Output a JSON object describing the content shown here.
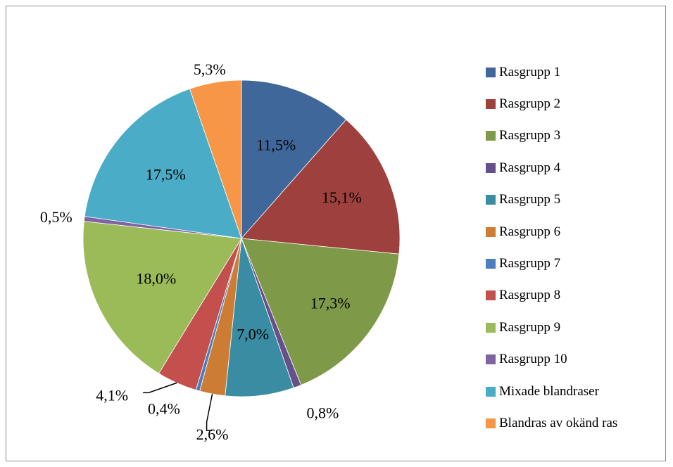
{
  "chart_data": {
    "type": "pie",
    "title": "",
    "slices": [
      {
        "name": "Rasgrupp 1",
        "label": "11,5%",
        "value": 11.5,
        "color": "#3f679a"
      },
      {
        "name": "Rasgrupp 2",
        "label": "15,1%",
        "value": 15.1,
        "color": "#9e403d"
      },
      {
        "name": "Rasgrupp 3",
        "label": "17,3%",
        "value": 17.3,
        "color": "#7e9a48"
      },
      {
        "name": "Rasgrupp 4",
        "label": "0,8%",
        "value": 0.8,
        "color": "#65508a"
      },
      {
        "name": "Rasgrupp 5",
        "label": "7,0%",
        "value": 7.0,
        "color": "#3a8ca3"
      },
      {
        "name": "Rasgrupp 6",
        "label": "2,6%",
        "value": 2.6,
        "color": "#cd7c34"
      },
      {
        "name": "Rasgrupp 7",
        "label": "0,4%",
        "value": 0.4,
        "color": "#4a7fc0"
      },
      {
        "name": "Rasgrupp 8",
        "label": "4,1%",
        "value": 4.1,
        "color": "#c4504d"
      },
      {
        "name": "Rasgrupp 9",
        "label": "18,0%",
        "value": 18.0,
        "color": "#9bbb59"
      },
      {
        "name": "Rasgrupp 10",
        "label": "0,5%",
        "value": 0.5,
        "color": "#8064a2"
      },
      {
        "name": "Mixade blandraser",
        "label": "17,5%",
        "value": 17.5,
        "color": "#4aacc6"
      },
      {
        "name": "Blandras av okänd ras",
        "label": "5,3%",
        "value": 5.3,
        "color": "#f79646"
      }
    ],
    "legend_position": "right",
    "legend": [
      "Rasgrupp 1",
      "Rasgrupp 2",
      "Rasgrupp 3",
      "Rasgrupp 4",
      "Rasgrupp 5",
      "Rasgrupp 6",
      "Rasgrupp 7",
      "Rasgrupp 8",
      "Rasgrupp 9",
      "Rasgrupp 10",
      "Mixade blandraser",
      "Blandras av okänd ras"
    ]
  }
}
